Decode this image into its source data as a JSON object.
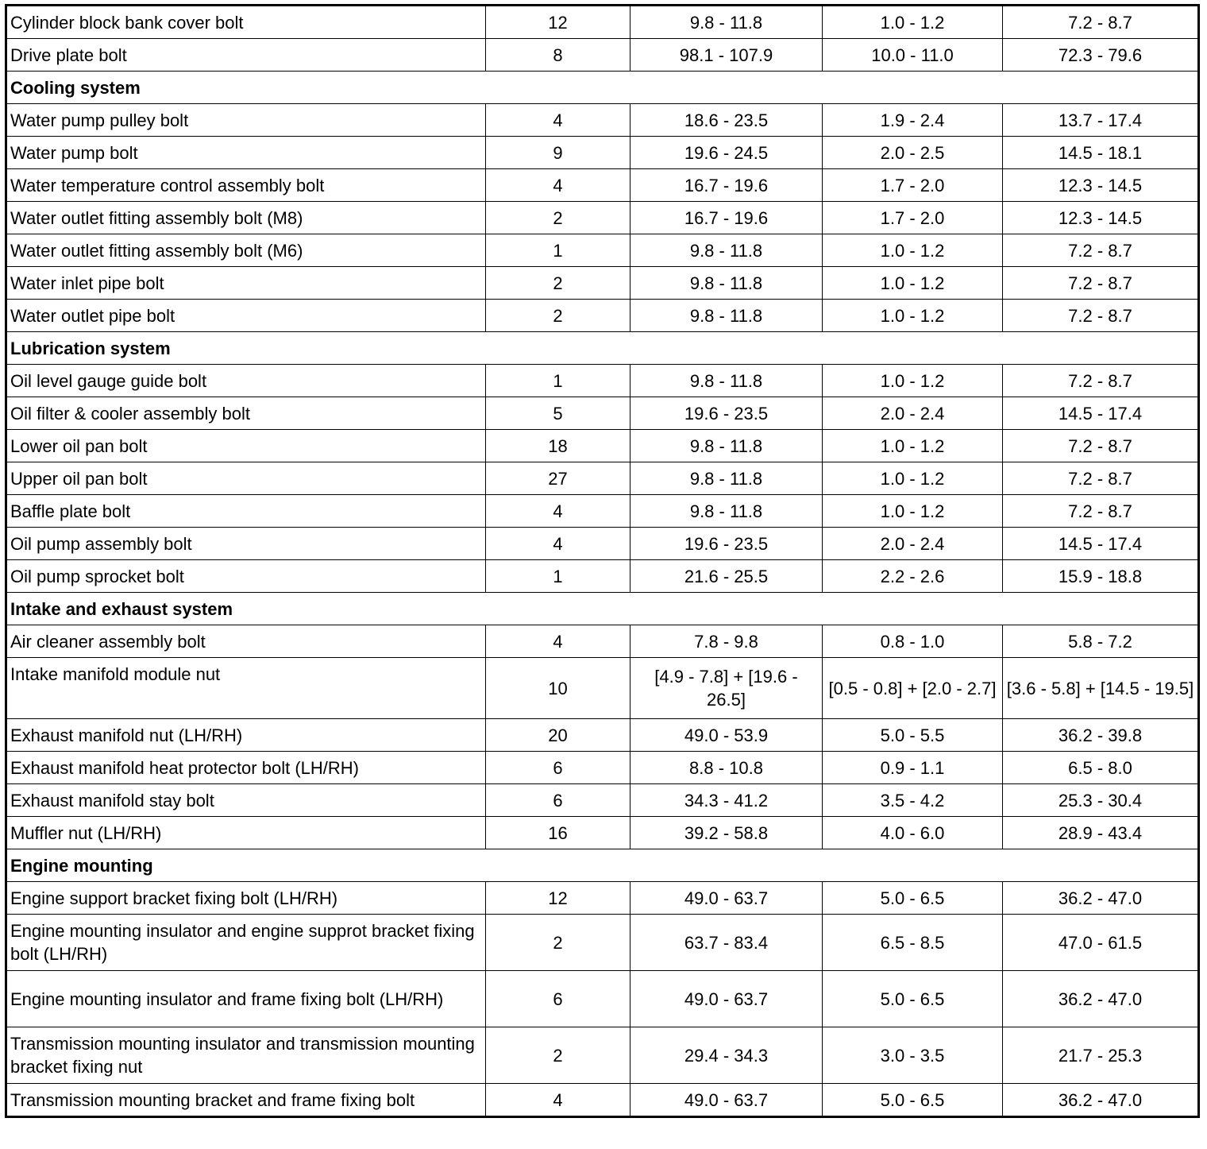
{
  "rows": [
    {
      "type": "item",
      "name": "Cylinder block bank cover bolt",
      "qty": "12",
      "nm": "9.8 - 11.8",
      "kgfm": "1.0 - 1.2",
      "lbft": "7.2 - 8.7"
    },
    {
      "type": "item",
      "name": "Drive plate bolt",
      "qty": "8",
      "nm": "98.1 - 107.9",
      "kgfm": "10.0 - 11.0",
      "lbft": "72.3 - 79.6"
    },
    {
      "type": "section",
      "name": "Cooling system"
    },
    {
      "type": "item",
      "name": "Water pump pulley bolt",
      "qty": "4",
      "nm": "18.6 - 23.5",
      "kgfm": "1.9 - 2.4",
      "lbft": "13.7 - 17.4"
    },
    {
      "type": "item",
      "name": "Water pump bolt",
      "qty": "9",
      "nm": "19.6 - 24.5",
      "kgfm": "2.0 - 2.5",
      "lbft": "14.5 - 18.1"
    },
    {
      "type": "item",
      "name": "Water temperature control assembly bolt",
      "qty": "4",
      "nm": "16.7 - 19.6",
      "kgfm": "1.7 - 2.0",
      "lbft": "12.3 - 14.5"
    },
    {
      "type": "item",
      "name": "Water outlet fitting assembly bolt (M8)",
      "qty": "2",
      "nm": "16.7 - 19.6",
      "kgfm": "1.7 - 2.0",
      "lbft": "12.3 - 14.5"
    },
    {
      "type": "item",
      "name": "Water outlet fitting assembly bolt (M6)",
      "qty": "1",
      "nm": "9.8 - 11.8",
      "kgfm": "1.0 - 1.2",
      "lbft": "7.2 - 8.7"
    },
    {
      "type": "item",
      "name": "Water inlet pipe bolt",
      "qty": "2",
      "nm": "9.8 - 11.8",
      "kgfm": "1.0 - 1.2",
      "lbft": "7.2 - 8.7"
    },
    {
      "type": "item",
      "name": "Water outlet pipe bolt",
      "qty": "2",
      "nm": "9.8 - 11.8",
      "kgfm": "1.0 - 1.2",
      "lbft": "7.2 - 8.7"
    },
    {
      "type": "section",
      "name": "Lubrication system"
    },
    {
      "type": "item",
      "name": "Oil level gauge guide bolt",
      "qty": "1",
      "nm": "9.8 - 11.8",
      "kgfm": "1.0 - 1.2",
      "lbft": "7.2 - 8.7"
    },
    {
      "type": "item",
      "name": "Oil filter & cooler assembly bolt",
      "qty": "5",
      "nm": "19.6 - 23.5",
      "kgfm": "2.0 - 2.4",
      "lbft": "14.5 - 17.4"
    },
    {
      "type": "item",
      "name": "Lower oil pan bolt",
      "qty": "18",
      "nm": "9.8 - 11.8",
      "kgfm": "1.0 - 1.2",
      "lbft": "7.2 - 8.7"
    },
    {
      "type": "item",
      "name": "Upper oil pan bolt",
      "qty": "27",
      "nm": "9.8 - 11.8",
      "kgfm": "1.0 - 1.2",
      "lbft": "7.2 - 8.7"
    },
    {
      "type": "item",
      "name": "Baffle plate bolt",
      "qty": "4",
      "nm": "9.8 - 11.8",
      "kgfm": "1.0 - 1.2",
      "lbft": "7.2 - 8.7"
    },
    {
      "type": "item",
      "name": "Oil pump assembly bolt",
      "qty": "4",
      "nm": "19.6 - 23.5",
      "kgfm": "2.0 - 2.4",
      "lbft": "14.5 - 17.4"
    },
    {
      "type": "item",
      "name": "Oil pump sprocket bolt",
      "qty": "1",
      "nm": "21.6 - 25.5",
      "kgfm": "2.2 - 2.6",
      "lbft": "15.9 - 18.8"
    },
    {
      "type": "section",
      "name": "Intake and exhaust system"
    },
    {
      "type": "item",
      "name": "Air cleaner assembly bolt",
      "qty": "4",
      "nm": "7.8 - 9.8",
      "kgfm": "0.8 - 1.0",
      "lbft": "5.8 - 7.2"
    },
    {
      "type": "item",
      "tall": true,
      "top": true,
      "name": "Intake manifold module nut",
      "qty": "10",
      "nm": "[4.9 - 7.8] + [19.6 - 26.5]",
      "kgfm": "[0.5 - 0.8] + [2.0 - 2.7]",
      "lbft": "[3.6 - 5.8] + [14.5 - 19.5]"
    },
    {
      "type": "item",
      "name": "Exhaust manifold nut (LH/RH)",
      "qty": "20",
      "nm": "49.0 - 53.9",
      "kgfm": "5.0 - 5.5",
      "lbft": "36.2 - 39.8"
    },
    {
      "type": "item",
      "name": "Exhaust manifold heat protector bolt (LH/RH)",
      "qty": "6",
      "nm": "8.8 - 10.8",
      "kgfm": "0.9 - 1.1",
      "lbft": "6.5 - 8.0"
    },
    {
      "type": "item",
      "name": "Exhaust manifold stay bolt",
      "qty": "6",
      "nm": "34.3 - 41.2",
      "kgfm": "3.5 - 4.2",
      "lbft": "25.3 - 30.4"
    },
    {
      "type": "item",
      "name": "Muffler nut (LH/RH)",
      "qty": "16",
      "nm": "39.2 - 58.8",
      "kgfm": "4.0 - 6.0",
      "lbft": "28.9 - 43.4"
    },
    {
      "type": "section",
      "name": "Engine mounting"
    },
    {
      "type": "item",
      "name": "Engine support bracket fixing bolt (LH/RH)",
      "qty": "12",
      "nm": "49.0 - 63.7",
      "kgfm": "5.0 - 6.5",
      "lbft": "36.2 - 47.0"
    },
    {
      "type": "item",
      "tall": true,
      "name": "Engine mounting insulator and engine supprot bracket fixing bolt (LH/RH)",
      "qty": "2",
      "nm": "63.7 - 83.4",
      "kgfm": "6.5 - 8.5",
      "lbft": "47.0 - 61.5"
    },
    {
      "type": "item",
      "tall": true,
      "name": "Engine mounting insulator and frame fixing bolt (LH/RH)",
      "qty": "6",
      "nm": "49.0 - 63.7",
      "kgfm": "5.0 - 6.5",
      "lbft": "36.2 - 47.0"
    },
    {
      "type": "item",
      "tall": true,
      "name": "Transmission mounting insulator and transmission mounting bracket fixing nut",
      "qty": "2",
      "nm": "29.4 - 34.3",
      "kgfm": "3.0 - 3.5",
      "lbft": "21.7 - 25.3"
    },
    {
      "type": "item",
      "name": "Transmission mounting bracket and frame fixing bolt",
      "qty": "4",
      "nm": "49.0 - 63.7",
      "kgfm": "5.0 - 6.5",
      "lbft": "36.2 - 47.0"
    }
  ]
}
